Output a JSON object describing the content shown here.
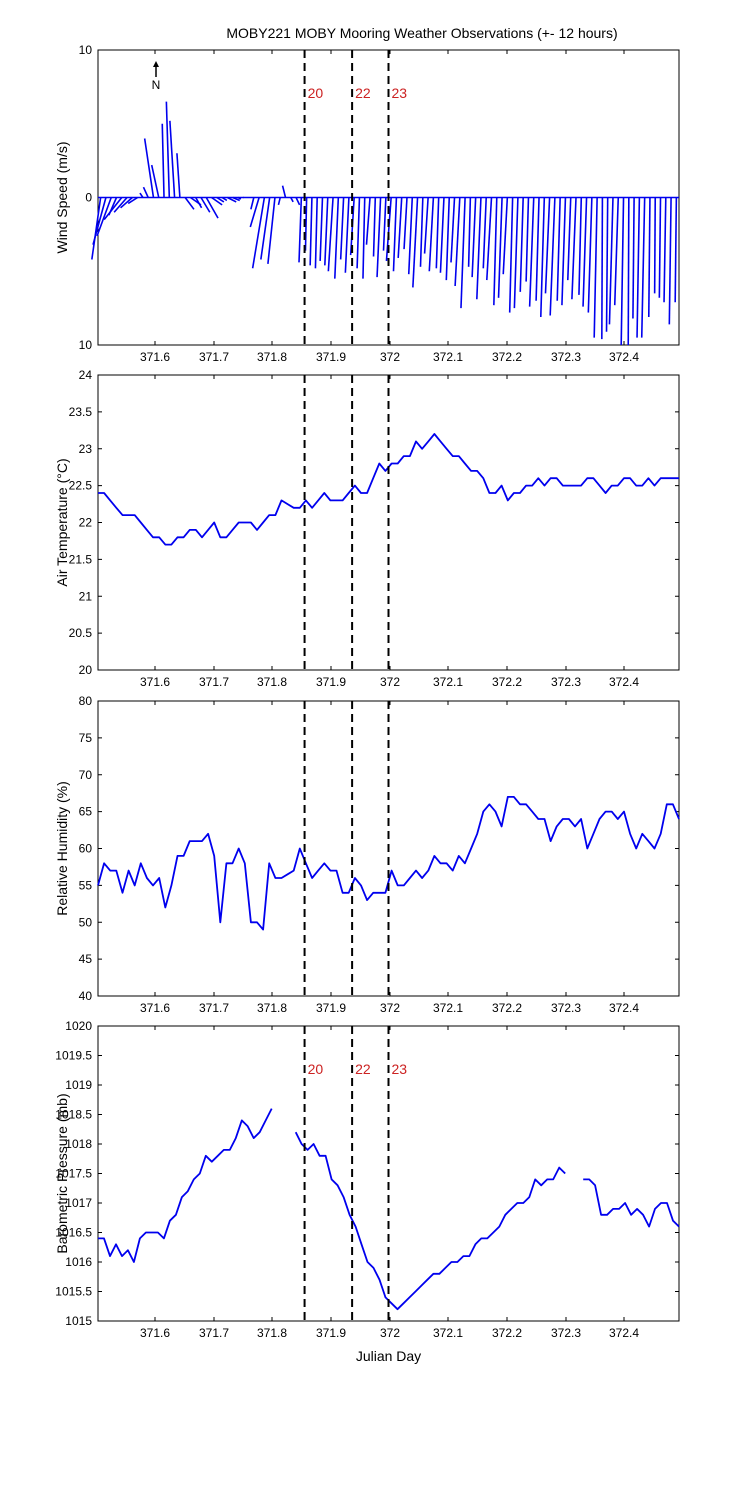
{
  "title": "MOBY221 MOBY Mooring Weather Observations (+- 12 hours)",
  "north_label": "N",
  "markers": [
    {
      "x": 371.857,
      "label": "20"
    },
    {
      "x": 371.938,
      "label": "22"
    },
    {
      "x": 372.0,
      "label": "23"
    }
  ],
  "colors": {
    "series": "#0000ee",
    "marker_line": "#000000",
    "marker_text": "#cc2222"
  },
  "chart_data": [
    {
      "type": "quiver",
      "name": "wind",
      "xlabel": "",
      "ylabel": "Wind Speed (m/s)",
      "xlim": [
        371.505,
        372.495
      ],
      "ylim": [
        -10,
        10
      ],
      "yticks": [
        {
          "v": 10,
          "t": "10"
        },
        {
          "v": 0,
          "t": "0"
        },
        {
          "v": -10,
          "t": "10"
        }
      ],
      "xticks": [
        "371.6",
        "371.7",
        "371.8",
        "371.9",
        "372",
        "372.1",
        "372.2",
        "372.3",
        "372.4"
      ],
      "show_markers": true,
      "show_marker_labels": true,
      "u": [
        -1.5,
        -2.2,
        -2.4,
        -1.3,
        -3,
        -2.2,
        -2,
        -1.6,
        -0.5,
        -0.8,
        -1.5,
        -1.2,
        -0.3,
        -0.5,
        -0.8,
        -0.5,
        1.5,
        1.8,
        1,
        1.5,
        2,
        1.8,
        1.2,
        0.8,
        1.5,
        1.2,
        0.5,
        0.1,
        0,
        -0.5,
        -1.5,
        -2,
        -1.5,
        -1.2,
        -0.3,
        -0.5,
        0.4,
        0.6,
        -0.4,
        -0.2,
        -0.3,
        -0.3,
        -0.4,
        -0.5,
        -0.8,
        -0.6,
        -0.5,
        -0.6,
        -0.6,
        -0.4,
        -0.3,
        -0.6,
        -0.3,
        -0.6,
        -0.4,
        -0.8,
        -0.5,
        -0.6,
        -0.5,
        -0.6,
        -0.8,
        -0.4,
        -0.6,
        -0.7,
        -0.4,
        -0.6,
        -0.5,
        -0.6,
        -0.8,
        -0.7,
        -0.3,
        -0.6,
        -0.7,
        -0.5,
        -0.8,
        -0.5,
        -0.6,
        -0.7,
        -0.5,
        -0.6,
        -0.5,
        -0.4,
        -0.7,
        -0.5,
        -0.6,
        -0.7,
        -0.8,
        -0.5,
        -0.6,
        -0.5,
        -0.7,
        -0.4,
        -0.6,
        -0.6,
        -0.5,
        -0.1,
        -0.2,
        -0.6,
        -0.6,
        -0.4,
        -0.1,
        -0.2,
        -0.4,
        -0.5,
        -0.2,
        -0.1,
        -0.2,
        -0.3,
        -0.3,
        -0.2
      ],
      "v": [
        -4.2,
        -3.2,
        -2.6,
        -1.2,
        -1.5,
        -1,
        -0.7,
        -0.4,
        0.3,
        0.7,
        4,
        2.2,
        5,
        6.5,
        5.2,
        3,
        -0.8,
        -0.5,
        -0.7,
        -1,
        -1.4,
        -0.5,
        -0.3,
        -0.2,
        -0.3,
        -0.2,
        -0.1,
        0,
        0,
        -0.8,
        -2,
        -4.8,
        -4.2,
        -4.5,
        -0.5,
        0.8,
        -0.3,
        -0.5,
        -4.4,
        -3.6,
        -4.6,
        -4.8,
        -4.3,
        -4.6,
        -5,
        -5.5,
        -4.2,
        -5.1,
        -3.9,
        -4.8,
        -5.5,
        -3.2,
        -4,
        -5.4,
        -3.6,
        -4.3,
        -5,
        -4.1,
        -3.5,
        -5.2,
        -6.1,
        -4.7,
        -3.8,
        -5,
        -4.8,
        -5.1,
        -5.6,
        -4.4,
        -6,
        -7.5,
        -4.7,
        -5.4,
        -6.9,
        -4.8,
        -5.6,
        -7.3,
        -6.8,
        -5.2,
        -7.8,
        -7.5,
        -6.4,
        -5.7,
        -7.4,
        -7,
        -8.1,
        -6.5,
        -8,
        -7,
        -7.3,
        -5.6,
        -6.9,
        -6.6,
        -7.4,
        -7.8,
        -9.5,
        -9.6,
        -9.1,
        -8.6,
        -7.3,
        -10,
        -10,
        -8.2,
        -9.5,
        -9.5,
        -8.1,
        -6.5,
        -6.8,
        -7.1,
        -8.6,
        -7.1
      ]
    },
    {
      "type": "line",
      "name": "air-temperature",
      "xlabel": "",
      "ylabel": "Air Temperature (°C)",
      "xlim": [
        371.505,
        372.495
      ],
      "ylim": [
        20,
        24
      ],
      "yticks": [
        {
          "v": 20,
          "t": "20"
        },
        {
          "v": 20.5,
          "t": "20.5"
        },
        {
          "v": 21,
          "t": "21"
        },
        {
          "v": 21.5,
          "t": "21.5"
        },
        {
          "v": 22,
          "t": "22"
        },
        {
          "v": 22.5,
          "t": "22.5"
        },
        {
          "v": 23,
          "t": "23"
        },
        {
          "v": 23.5,
          "t": "23.5"
        },
        {
          "v": 24,
          "t": "24"
        }
      ],
      "xticks": [
        "371.6",
        "371.7",
        "371.8",
        "371.9",
        "372",
        "372.1",
        "372.2",
        "372.3",
        "372.4"
      ],
      "show_markers": true,
      "show_marker_labels": false,
      "values": [
        22.4,
        22.4,
        22.3,
        22.2,
        22.1,
        22.1,
        22.1,
        22,
        21.9,
        21.8,
        21.8,
        21.7,
        21.7,
        21.8,
        21.8,
        21.9,
        21.9,
        21.8,
        21.9,
        22,
        21.8,
        21.8,
        21.9,
        22,
        22,
        22,
        21.9,
        22,
        22.1,
        22.1,
        22.3,
        22.25,
        22.2,
        22.2,
        22.3,
        22.2,
        22.3,
        22.4,
        22.3,
        22.3,
        22.3,
        22.4,
        22.5,
        22.4,
        22.4,
        22.6,
        22.8,
        22.7,
        22.8,
        22.8,
        22.9,
        22.9,
        23.1,
        23,
        23.1,
        23.2,
        23.1,
        23,
        22.9,
        22.9,
        22.8,
        22.7,
        22.7,
        22.6,
        22.4,
        22.4,
        22.5,
        22.3,
        22.4,
        22.4,
        22.5,
        22.5,
        22.6,
        22.5,
        22.6,
        22.6,
        22.5,
        22.5,
        22.5,
        22.5,
        22.6,
        22.6,
        22.5,
        22.4,
        22.5,
        22.5,
        22.6,
        22.6,
        22.5,
        22.5,
        22.6,
        22.5,
        22.6,
        22.6,
        22.6,
        22.6
      ]
    },
    {
      "type": "line",
      "name": "relative-humidity",
      "xlabel": "",
      "ylabel": "Relative Humidity (%)",
      "xlim": [
        371.505,
        372.495
      ],
      "ylim": [
        40,
        80
      ],
      "yticks": [
        {
          "v": 40,
          "t": "40"
        },
        {
          "v": 45,
          "t": "45"
        },
        {
          "v": 50,
          "t": "50"
        },
        {
          "v": 55,
          "t": "55"
        },
        {
          "v": 60,
          "t": "60"
        },
        {
          "v": 65,
          "t": "65"
        },
        {
          "v": 70,
          "t": "70"
        },
        {
          "v": 75,
          "t": "75"
        },
        {
          "v": 80,
          "t": "80"
        }
      ],
      "xticks": [
        "371.6",
        "371.7",
        "371.8",
        "371.9",
        "372",
        "372.1",
        "372.2",
        "372.3",
        "372.4"
      ],
      "show_markers": true,
      "show_marker_labels": false,
      "values": [
        55,
        58,
        57,
        57,
        54,
        57,
        55,
        58,
        56,
        55,
        56,
        52,
        55,
        59,
        59,
        61,
        61,
        61,
        62,
        59,
        50,
        58,
        58,
        60,
        58,
        50,
        50,
        49,
        58,
        56,
        56,
        56.5,
        57,
        60,
        58,
        56,
        57,
        58,
        57,
        57,
        54,
        54,
        56,
        55,
        53,
        54,
        54,
        54,
        57,
        55,
        55,
        56,
        57,
        56,
        57,
        59,
        58,
        58,
        57,
        59,
        58,
        60,
        62,
        65,
        66,
        65,
        63,
        67,
        67,
        66,
        66,
        65,
        64,
        64,
        61,
        63,
        64,
        64,
        63,
        64,
        60,
        62,
        64,
        65,
        65,
        64,
        65,
        62,
        60,
        62,
        61,
        60,
        62,
        66,
        66,
        64
      ]
    },
    {
      "type": "line",
      "name": "barometric-pressure",
      "xlabel": "Julian Day",
      "ylabel": "Barometric Pressure (mb)",
      "xlim": [
        371.505,
        372.495
      ],
      "ylim": [
        1015,
        1020
      ],
      "yticks": [
        {
          "v": 1015,
          "t": "1015"
        },
        {
          "v": 1015.5,
          "t": "1015.5"
        },
        {
          "v": 1016,
          "t": "1016"
        },
        {
          "v": 1016.5,
          "t": "1016.5"
        },
        {
          "v": 1017,
          "t": "1017"
        },
        {
          "v": 1017.5,
          "t": "1017.5"
        },
        {
          "v": 1018,
          "t": "1018"
        },
        {
          "v": 1018.5,
          "t": "1018.5"
        },
        {
          "v": 1019,
          "t": "1019"
        },
        {
          "v": 1019.5,
          "t": "1019.5"
        },
        {
          "v": 1020,
          "t": "1020"
        }
      ],
      "xticks": [
        "371.6",
        "371.7",
        "371.8",
        "371.9",
        "372",
        "372.1",
        "372.2",
        "372.3",
        "372.4"
      ],
      "show_markers": true,
      "show_marker_labels": true,
      "values": [
        1016.4,
        1016.4,
        1016.1,
        1016.3,
        1016.1,
        1016.2,
        1016,
        1016.4,
        1016.5,
        1016.5,
        1016.5,
        1016.4,
        1016.7,
        1016.8,
        1017.1,
        1017.2,
        1017.4,
        1017.5,
        1017.8,
        1017.7,
        1017.8,
        1017.9,
        1017.9,
        1018.1,
        1018.4,
        1018.3,
        1018.1,
        1018.2,
        1018.4,
        1018.6,
        null,
        null,
        null,
        1018.2,
        1018,
        1017.9,
        1018,
        1017.8,
        1017.8,
        1017.4,
        1017.3,
        1017.1,
        1016.8,
        1016.6,
        1016.3,
        1016,
        1015.9,
        1015.7,
        1015.4,
        1015.3,
        1015.2,
        1015.3,
        1015.4,
        1015.5,
        1015.6,
        1015.7,
        1015.8,
        1015.8,
        1015.9,
        1016,
        1016,
        1016.1,
        1016.1,
        1016.3,
        1016.4,
        1016.4,
        1016.5,
        1016.6,
        1016.8,
        1016.9,
        1017,
        1017,
        1017.1,
        1017.4,
        1017.3,
        1017.4,
        1017.4,
        1017.6,
        1017.5,
        null,
        null,
        1017.4,
        1017.4,
        1017.3,
        1016.8,
        1016.8,
        1016.9,
        1016.9,
        1017,
        1016.8,
        1016.9,
        1016.8,
        1016.6,
        1016.9,
        1017,
        1017,
        1016.7,
        1016.6
      ]
    }
  ]
}
